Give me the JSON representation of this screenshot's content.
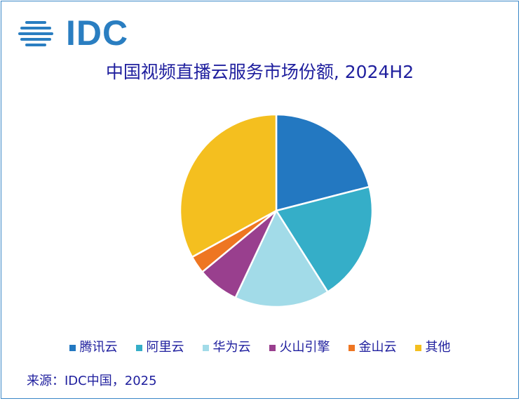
{
  "logo": {
    "text": "IDC"
  },
  "chart_data": {
    "type": "pie",
    "title": "中国视频直播云服务市场份额, 2024H2",
    "categories": [
      "腾讯云",
      "阿里云",
      "华为云",
      "火山引擎",
      "金山云",
      "其他"
    ],
    "values": [
      21,
      20,
      16,
      7,
      3,
      33
    ],
    "colors": [
      "#2378c1",
      "#35aec8",
      "#a2dbe8",
      "#993f8e",
      "#ee7622",
      "#f4bf1f"
    ],
    "legend_position": "bottom"
  },
  "source": "来源：IDC中国，2025"
}
